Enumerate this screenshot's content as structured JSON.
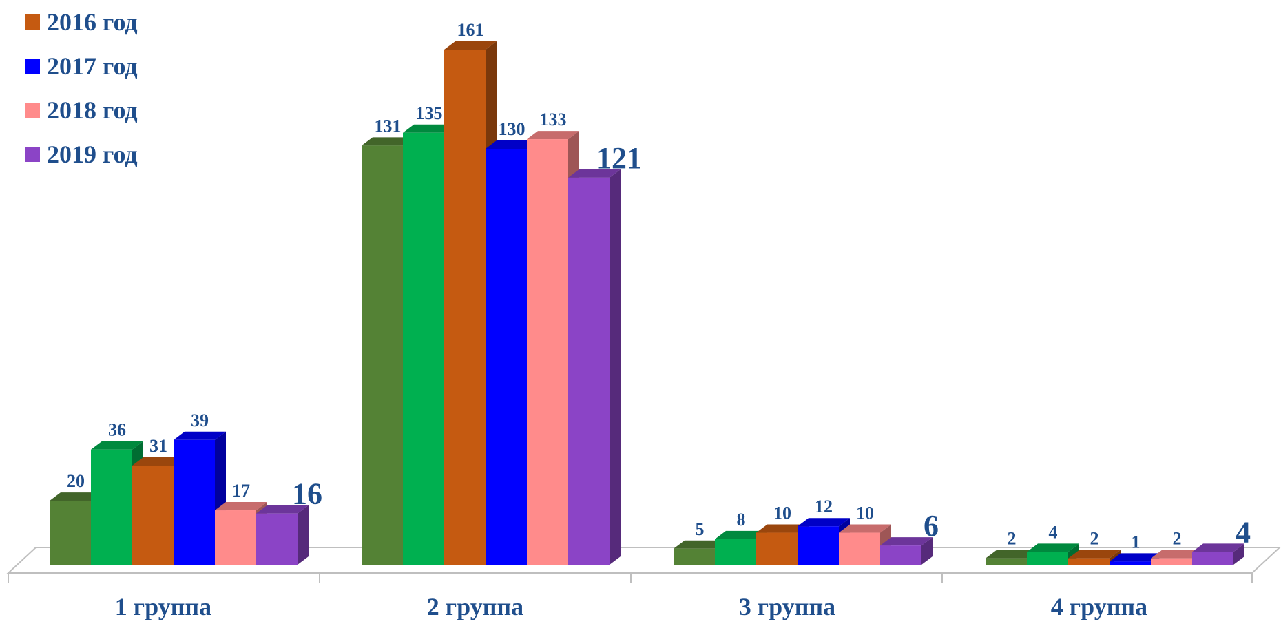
{
  "chart_data": {
    "type": "bar",
    "categories": [
      "1 группа",
      "2 группа",
      "3 группа",
      "4 группа"
    ],
    "series": [
      {
        "values": [
          20,
          131,
          5,
          2
        ],
        "color": "#548235"
      },
      {
        "values": [
          36,
          135,
          8,
          4
        ],
        "color": "#00b050"
      },
      {
        "name": "2016 год",
        "values": [
          31,
          161,
          10,
          2
        ],
        "color": "#c55a11"
      },
      {
        "name": "2017 год",
        "values": [
          39,
          130,
          12,
          1
        ],
        "color": "#0000ff"
      },
      {
        "name": "2018 год",
        "values": [
          17,
          133,
          10,
          2
        ],
        "color": "#ff8b8b"
      },
      {
        "name": "2019 год",
        "values": [
          16,
          121,
          6,
          4
        ],
        "color": "#8b44c6"
      }
    ],
    "ylim": [
      0,
      161
    ],
    "legend_position": "top-left",
    "grid": false,
    "label_color": "#1f4e8c"
  },
  "legend": [
    {
      "label": "2016 год",
      "color": "#c55a11"
    },
    {
      "label": "2017 год",
      "color": "#0000ff"
    },
    {
      "label": "2018 год",
      "color": "#ff8b8b"
    },
    {
      "label": "2019 год",
      "color": "#8b44c6"
    }
  ]
}
